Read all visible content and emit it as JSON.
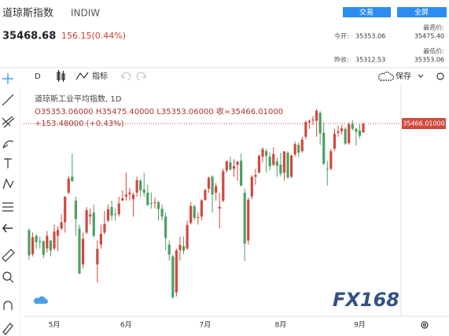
{
  "header": {
    "title": "道琼斯指数",
    "symbol": "INDIW",
    "trade_button": "交易",
    "fullscreen_button": "全屏",
    "price": "35468.68",
    "change": "156.15(0.44%)",
    "open_label": "今开:",
    "open": "35353.06",
    "high_label": "最高价:",
    "high": "35475.40",
    "prev_close_label": "昨收:",
    "prev_close": "35312.53",
    "low_label": "最低价:",
    "low": "35353.06"
  },
  "toolbar": {
    "interval": "D",
    "indicators": "指标",
    "save": "保存"
  },
  "watermark": "FX168",
  "chart_data": {
    "type": "candlestick",
    "legend_title": "道琼斯工业平均指数, 1D",
    "legend_ohlc": "O35353.06000 H35475.40000 L35353.06000 收=35466.01000",
    "legend_change": "+153.48000 (+0.43%)",
    "up_color": "#cf4a3f",
    "down_color": "#4f9e66",
    "ylim": [
      33070,
      35910
    ],
    "price_line": {
      "value": 35466.01,
      "label": "35466.01000"
    },
    "categories": [
      null,
      null,
      null,
      null,
      null,
      null,
      null,
      "5月",
      null,
      null,
      null,
      null,
      null,
      null,
      null,
      null,
      null,
      null,
      null,
      null,
      null,
      null,
      null,
      null,
      null,
      null,
      null,
      "6月",
      null,
      null,
      null,
      null,
      null,
      null,
      null,
      null,
      null,
      null,
      null,
      null,
      null,
      null,
      null,
      null,
      null,
      null,
      null,
      null,
      null,
      "7月",
      null,
      null,
      null,
      null,
      null,
      null,
      null,
      null,
      null,
      null,
      null,
      null,
      null,
      null,
      null,
      null,
      null,
      null,
      null,
      null,
      "8月",
      null,
      null,
      null,
      null,
      null,
      null,
      null,
      null,
      null,
      null,
      null,
      null,
      null,
      null,
      null,
      null,
      null,
      null,
      null,
      null,
      null,
      "9月",
      null
    ],
    "ohlc": [
      [
        34130,
        34150,
        33760,
        33815
      ],
      [
        33830,
        34100,
        33800,
        34043
      ],
      [
        34060,
        34080,
        33900,
        33981
      ],
      [
        33990,
        34050,
        33900,
        33984
      ],
      [
        33990,
        34000,
        33780,
        33820
      ],
      [
        33900,
        34120,
        33850,
        34060
      ],
      [
        34000,
        34010,
        33800,
        33875
      ],
      [
        33900,
        34200,
        33880,
        34113
      ],
      [
        34060,
        34180,
        33870,
        34133
      ],
      [
        34150,
        34330,
        34130,
        34230
      ],
      [
        34230,
        34560,
        34100,
        34548
      ],
      [
        34600,
        34810,
        34580,
        34778
      ],
      [
        34800,
        35090,
        34740,
        34743
      ],
      [
        34500,
        34550,
        34060,
        34270
      ],
      [
        34150,
        34200,
        33580,
        33587
      ],
      [
        33700,
        34100,
        33650,
        34021
      ],
      [
        34100,
        34420,
        34080,
        34382
      ],
      [
        34300,
        34400,
        34200,
        34327
      ],
      [
        34350,
        34450,
        34040,
        34060
      ],
      [
        33700,
        34000,
        33470,
        33896
      ],
      [
        33950,
        34200,
        33900,
        34084
      ],
      [
        34100,
        34370,
        34080,
        34208
      ],
      [
        34250,
        34450,
        34230,
        34394
      ],
      [
        34420,
        34500,
        34250,
        34313
      ],
      [
        34330,
        34400,
        34250,
        34323
      ],
      [
        34330,
        34550,
        34300,
        34465
      ],
      [
        34500,
        34630,
        34500,
        34529
      ],
      [
        34550,
        34850,
        34500,
        34575
      ],
      [
        34580,
        34660,
        34500,
        34600
      ],
      [
        34520,
        34600,
        34300,
        34577
      ],
      [
        34600,
        34800,
        34550,
        34756
      ],
      [
        34750,
        34770,
        34550,
        34630
      ],
      [
        34640,
        34850,
        34550,
        34600
      ],
      [
        34600,
        34700,
        34430,
        34447
      ],
      [
        34470,
        34600,
        34400,
        34466
      ],
      [
        34470,
        34540,
        34400,
        34480
      ],
      [
        34480,
        34500,
        34250,
        34393
      ],
      [
        34400,
        34450,
        34250,
        34299
      ],
      [
        34300,
        34350,
        33880,
        34033
      ],
      [
        33950,
        34000,
        33750,
        33823
      ],
      [
        33800,
        33820,
        33270,
        33290
      ],
      [
        33350,
        33900,
        33300,
        33876
      ],
      [
        33880,
        34050,
        33750,
        33945
      ],
      [
        33930,
        34050,
        33830,
        33874
      ],
      [
        33900,
        34250,
        33880,
        34196
      ],
      [
        34220,
        34480,
        34200,
        34433
      ],
      [
        34430,
        34450,
        34250,
        34283
      ],
      [
        34290,
        34350,
        34200,
        34292
      ],
      [
        34300,
        34520,
        34250,
        34503
      ],
      [
        34510,
        34650,
        34500,
        34633
      ],
      [
        34650,
        34800,
        34600,
        34786
      ],
      [
        34800,
        34820,
        34350,
        34577
      ],
      [
        34600,
        34720,
        34500,
        34681
      ],
      [
        34400,
        34600,
        34150,
        34421
      ],
      [
        34500,
        34900,
        34480,
        34870
      ],
      [
        34880,
        35000,
        34850,
        34996
      ],
      [
        34980,
        35050,
        34880,
        34889
      ],
      [
        34900,
        35020,
        34800,
        34933
      ],
      [
        34950,
        35000,
        34750,
        34987
      ],
      [
        35000,
        35090,
        34680,
        34688
      ],
      [
        34600,
        34650,
        33740,
        33962
      ],
      [
        34000,
        34540,
        33950,
        34512
      ],
      [
        34550,
        34820,
        34520,
        34798
      ],
      [
        34800,
        34900,
        34700,
        34823
      ],
      [
        34850,
        35080,
        34840,
        35061
      ],
      [
        35050,
        35170,
        34980,
        35144
      ],
      [
        35120,
        35150,
        34850,
        35058
      ],
      [
        35050,
        35100,
        34880,
        34930
      ],
      [
        34950,
        35170,
        34930,
        35085
      ],
      [
        34990,
        35040,
        34800,
        34935
      ],
      [
        34950,
        35100,
        34800,
        34838
      ],
      [
        34850,
        35120,
        34750,
        35117
      ],
      [
        35100,
        35120,
        34770,
        34793
      ],
      [
        34800,
        35080,
        34780,
        35065
      ],
      [
        35080,
        35240,
        35050,
        35209
      ],
      [
        35200,
        35230,
        35050,
        35102
      ],
      [
        35120,
        35300,
        35100,
        35265
      ],
      [
        35300,
        35500,
        35270,
        35485
      ],
      [
        35480,
        35520,
        35400,
        35500
      ],
      [
        35510,
        35560,
        35450,
        35516
      ],
      [
        35500,
        35650,
        35300,
        35625
      ],
      [
        35600,
        35620,
        35200,
        35343
      ],
      [
        35350,
        35480,
        34950,
        34961
      ],
      [
        34900,
        35000,
        34690,
        34894
      ],
      [
        34900,
        35150,
        34880,
        35120
      ],
      [
        35150,
        35400,
        35120,
        35336
      ],
      [
        35350,
        35440,
        35300,
        35367
      ],
      [
        35370,
        35450,
        35330,
        35406
      ],
      [
        35400,
        35420,
        35200,
        35214
      ],
      [
        35220,
        35480,
        35200,
        35456
      ],
      [
        35460,
        35510,
        35380,
        35400
      ],
      [
        35400,
        35410,
        35190,
        35361
      ],
      [
        35380,
        35460,
        35280,
        35313
      ],
      [
        35353.06,
        35475.4,
        35353.06,
        35466.01
      ]
    ]
  }
}
